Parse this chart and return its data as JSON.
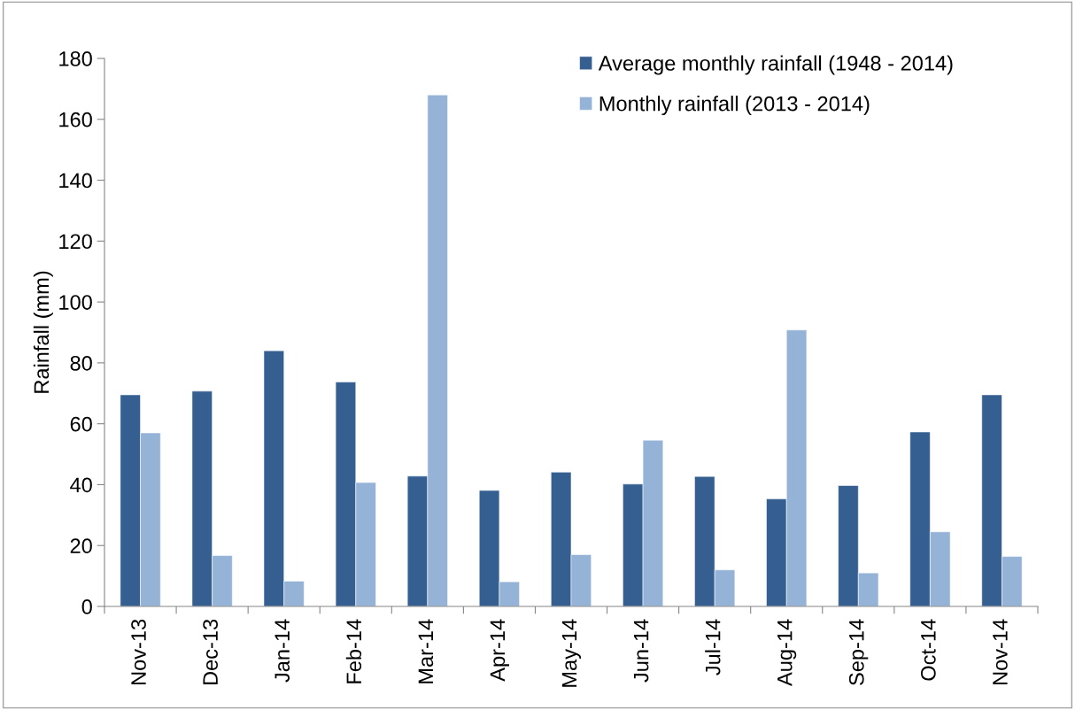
{
  "chart_data": {
    "type": "bar",
    "ylabel": "Rainfall (mm)",
    "categories": [
      "Nov-13",
      "Dec-13",
      "Jan-14",
      "Feb-14",
      "Mar-14",
      "Apr-14",
      "May-14",
      "Jun-14",
      "Jul-14",
      "Aug-14",
      "Sep-14",
      "Oct-14",
      "Nov-14"
    ],
    "series": [
      {
        "name": "Average monthly rainfall (1948 - 2014)",
        "color": "#355f91",
        "values": [
          69.5,
          70.7,
          84,
          73.7,
          42.8,
          38.1,
          44.1,
          40.2,
          42.7,
          35.3,
          39.7,
          57.3,
          69.5
        ]
      },
      {
        "name": "Monthly rainfall (2013 - 2014)",
        "color": "#95b3d7",
        "values": [
          57,
          16.7,
          8.3,
          40.7,
          168,
          8.1,
          17,
          54.6,
          12,
          90.8,
          11,
          24.5,
          16.4
        ]
      }
    ],
    "ylim": [
      0,
      180
    ],
    "yticks": [
      0,
      20,
      40,
      60,
      80,
      100,
      120,
      140,
      160,
      180
    ],
    "grid": false,
    "legend": "top right"
  }
}
